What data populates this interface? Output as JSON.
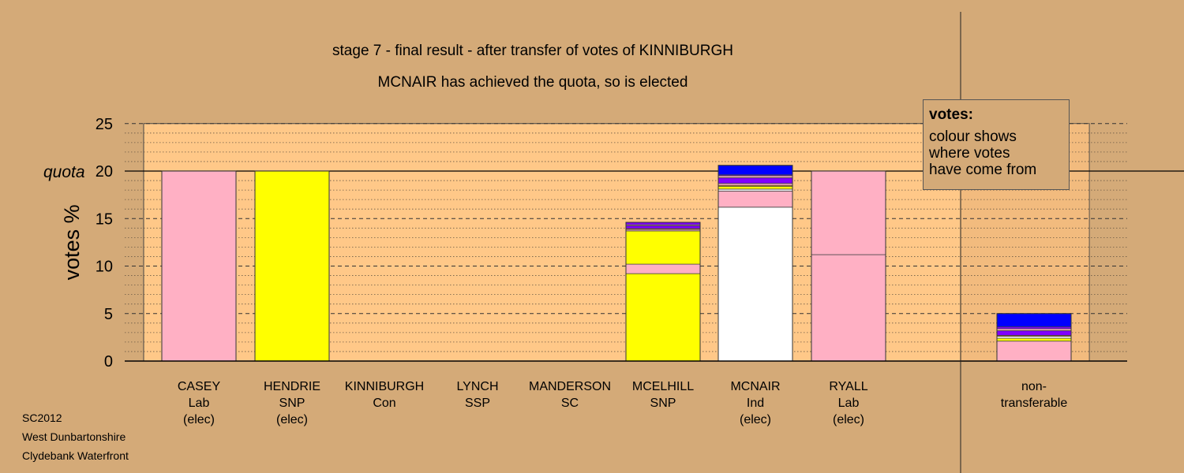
{
  "titles": {
    "line1": "stage 7 - final result - after transfer of votes of KINNIBURGH",
    "line2": "MCNAIR has achieved the quota, so is elected"
  },
  "legend": {
    "title": "votes:",
    "lines": [
      "colour shows",
      "where votes",
      "have come from"
    ]
  },
  "footer": [
    "SC2012",
    "West Dunbartonshire",
    "Clydebank Waterfront"
  ],
  "chart_data": {
    "type": "bar",
    "stacked": true,
    "ylabel": "votes %",
    "ylim": [
      0,
      25
    ],
    "yticks": [
      0,
      5,
      10,
      15,
      20,
      25
    ],
    "quota": {
      "label": "quota",
      "value": 20
    },
    "grid": "dashed major lines at 5, dotted minor lines at 1",
    "legend_position": "top-right",
    "colors": {
      "pink": "#ffb0c4",
      "yellow": "#ffff00",
      "white": "#ffffff",
      "purple": "#8000ff",
      "blue": "#0000ff",
      "orange": "#ff8c00",
      "plot_bg": "#ffc888",
      "page_bg": "#d4aa78"
    },
    "bars": [
      {
        "label": [
          "CASEY",
          "Lab",
          "(elec)"
        ],
        "total": 20.0,
        "segments": [
          {
            "color": "pink",
            "value": 20.0
          }
        ]
      },
      {
        "label": [
          "HENDRIE",
          "SNP",
          "(elec)"
        ],
        "total": 20.0,
        "segments": [
          {
            "color": "yellow",
            "value": 20.0
          }
        ]
      },
      {
        "label": [
          "KINNIBURGH",
          "Con"
        ],
        "total": 0,
        "segments": []
      },
      {
        "label": [
          "LYNCH",
          "SSP"
        ],
        "total": 0,
        "segments": []
      },
      {
        "label": [
          "MANDERSON",
          "SC"
        ],
        "total": 0,
        "segments": []
      },
      {
        "label": [
          "MCELHILL",
          "SNP"
        ],
        "total": 14.6,
        "segments": [
          {
            "color": "yellow",
            "value": 9.2
          },
          {
            "color": "pink",
            "value": 1.0
          },
          {
            "color": "yellow",
            "value": 3.5
          },
          {
            "color": "pink",
            "value": 0.15
          },
          {
            "color": "orange",
            "value": 0.1
          },
          {
            "color": "purple",
            "value": 0.3
          },
          {
            "color": "pink",
            "value": 0.1
          },
          {
            "color": "purple",
            "value": 0.25
          }
        ]
      },
      {
        "label": [
          "MCNAIR",
          "Ind",
          "(elec)"
        ],
        "total": 20.6,
        "segments": [
          {
            "color": "white",
            "value": 16.2
          },
          {
            "color": "pink",
            "value": 1.7
          },
          {
            "color": "white",
            "value": 0.2
          },
          {
            "color": "yellow",
            "value": 0.3
          },
          {
            "color": "orange",
            "value": 0.1
          },
          {
            "color": "pink",
            "value": 0.2
          },
          {
            "color": "purple",
            "value": 0.6
          },
          {
            "color": "pink",
            "value": 0.2
          },
          {
            "color": "purple",
            "value": 0.1
          },
          {
            "color": "blue",
            "value": 1.0
          }
        ]
      },
      {
        "label": [
          "RYALL",
          "Lab",
          "(elec)"
        ],
        "total": 20.0,
        "segments": [
          {
            "color": "pink",
            "value": 11.2
          },
          {
            "color": "pink",
            "value": 8.8
          }
        ]
      },
      {
        "label": [
          "non-",
          "transferable"
        ],
        "total": 5.0,
        "segments": [
          {
            "color": "pink",
            "value": 2.1
          },
          {
            "color": "yellow",
            "value": 0.3
          },
          {
            "color": "white",
            "value": 0.2
          },
          {
            "color": "orange",
            "value": 0.1
          },
          {
            "color": "purple",
            "value": 0.5
          },
          {
            "color": "pink",
            "value": 0.2
          },
          {
            "color": "purple",
            "value": 0.2
          },
          {
            "color": "blue",
            "value": 1.4
          }
        ]
      }
    ]
  }
}
